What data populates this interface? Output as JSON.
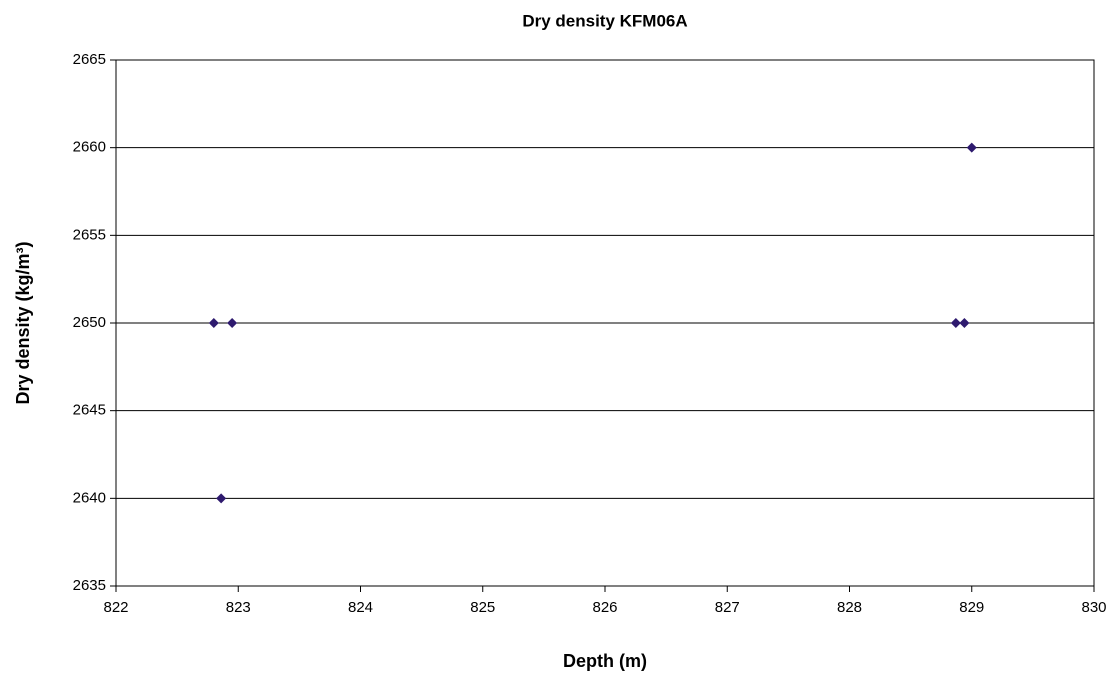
{
  "chart_data": {
    "type": "scatter",
    "title": "Dry density KFM06A",
    "x_label": "Depth (m)",
    "y_label": "Dry density (kg/m³)",
    "series": [
      {
        "name": "Dry density",
        "color": "#2e1a6e",
        "x": [
          822.8,
          822.95,
          822.86,
          828.87,
          828.94,
          829.0
        ],
        "values": [
          2650,
          2650,
          2640,
          2650,
          2650,
          2660
        ]
      }
    ],
    "xlim": [
      822,
      830
    ],
    "xticks": [
      822,
      823,
      824,
      825,
      826,
      827,
      828,
      829,
      830
    ],
    "ylim": [
      2635,
      2665
    ],
    "yticks": [
      2635,
      2640,
      2645,
      2650,
      2655,
      2660,
      2665
    ],
    "grid": true
  }
}
